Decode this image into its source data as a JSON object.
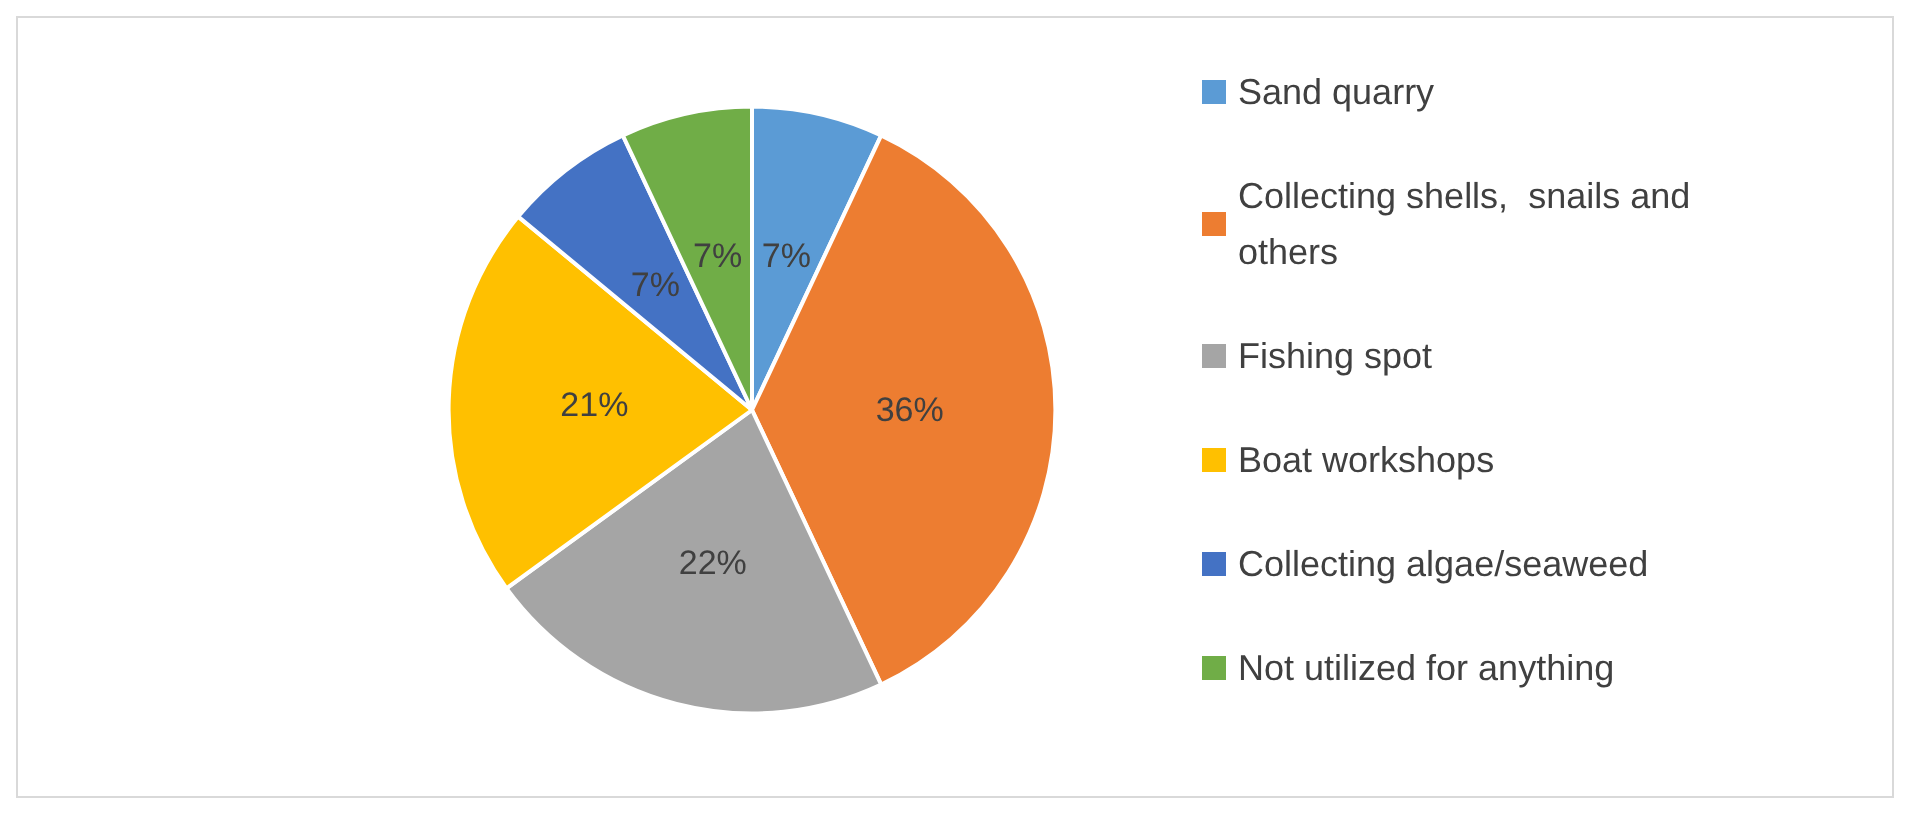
{
  "chart_data": {
    "type": "pie",
    "categories": [
      "Sand quarry",
      "Collecting shells,  snails and others",
      "Fishing spot",
      "Boat workshops",
      "Collecting algae/seaweed",
      "Not utilized for anything"
    ],
    "values": [
      7,
      36,
      22,
      21,
      7,
      7
    ],
    "colors": [
      "#5b9bd5",
      "#ed7d31",
      "#a5a5a5",
      "#ffc000",
      "#4472c4",
      "#70ad47"
    ],
    "value_labels": [
      "7%",
      "36%",
      "22%",
      "21%",
      "7%",
      "7%"
    ],
    "legend": "right"
  }
}
